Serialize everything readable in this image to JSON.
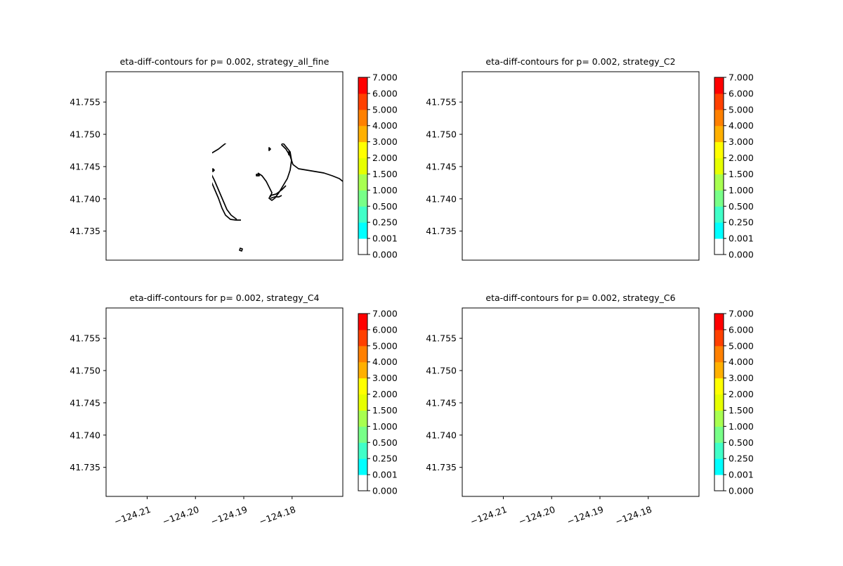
{
  "figure": {
    "background": "#ffffff"
  },
  "chart_data": [
    {
      "type": "contour",
      "title": "eta-diff-contours for p= 0.002, strategy_all_fine",
      "xlim": [
        -124.2185,
        -124.1695
      ],
      "ylim": [
        41.7305,
        41.7597
      ],
      "x_tick_labels": [],
      "y_tick_labels": [
        "41.735",
        "41.740",
        "41.745",
        "41.750",
        "41.755"
      ],
      "fill_pattern": "all_fine"
    },
    {
      "type": "contour",
      "title": "eta-diff-contours for p= 0.002, strategy_C2",
      "xlim": [
        -124.2185,
        -124.1695
      ],
      "ylim": [
        41.7305,
        41.7597
      ],
      "x_tick_labels": [],
      "y_tick_labels": [
        "41.735",
        "41.740",
        "41.745",
        "41.750",
        "41.755"
      ],
      "fill_pattern": "C2"
    },
    {
      "type": "contour",
      "title": "eta-diff-contours for p= 0.002, strategy_C4",
      "xlim": [
        -124.2185,
        -124.1695
      ],
      "ylim": [
        41.7305,
        41.7597
      ],
      "x_tick_labels": [
        "−124.21",
        "−124.20",
        "−124.19",
        "−124.18"
      ],
      "y_tick_labels": [
        "41.735",
        "41.740",
        "41.745",
        "41.750",
        "41.755"
      ],
      "fill_pattern": "C4"
    },
    {
      "type": "contour",
      "title": "eta-diff-contours for p= 0.002, strategy_C6",
      "xlim": [
        -124.2185,
        -124.1695
      ],
      "ylim": [
        41.7305,
        41.7597
      ],
      "x_tick_labels": [
        "−124.21",
        "−124.20",
        "−124.19",
        "−124.18"
      ],
      "y_tick_labels": [
        "41.735",
        "41.740",
        "41.745",
        "41.750",
        "41.755"
      ],
      "fill_pattern": "C6"
    }
  ],
  "colorbar": {
    "levels": [
      "0.000",
      "0.001",
      "0.250",
      "0.500",
      "1.000",
      "1.500",
      "2.000",
      "3.000",
      "4.000",
      "5.000",
      "6.000",
      "7.000"
    ],
    "colors": [
      "#ffffff",
      "#00ffff",
      "#40ffc8",
      "#78ff88",
      "#a8ff50",
      "#e6ff00",
      "#ffff00",
      "#ffb000",
      "#ff8000",
      "#ff4000",
      "#ff0000"
    ]
  },
  "x_ticks": [
    -124.21,
    -124.2,
    -124.19,
    -124.18
  ],
  "y_ticks": [
    41.735,
    41.74,
    41.745,
    41.75,
    41.755
  ]
}
